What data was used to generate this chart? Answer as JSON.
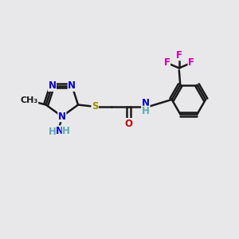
{
  "bg_color": "#e8e8eb",
  "bond_color": "#1a1a1a",
  "bond_width": 1.8,
  "atom_colors": {
    "N_blue": "#0000cc",
    "N_teal": "#5aabab",
    "S": "#999000",
    "O": "#cc0000",
    "F": "#cc00aa",
    "C": "#1a1a1a",
    "H": "#5aabab"
  },
  "font_size": 8.5,
  "figsize": [
    3.0,
    3.0
  ],
  "dpi": 100,
  "xlim": [
    0,
    10
  ],
  "ylim": [
    0,
    10
  ]
}
